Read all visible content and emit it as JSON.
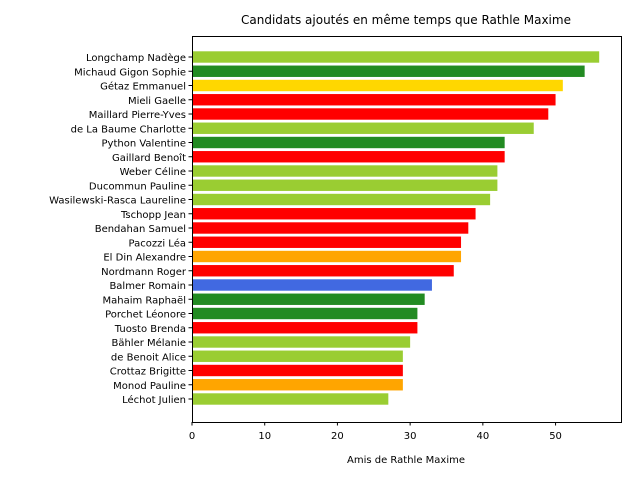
{
  "chart_data": {
    "type": "bar",
    "orientation": "horizontal",
    "title": "Candidats ajoutés en même temps que Rathle Maxime",
    "xlabel": "Amis de Rathle Maxime",
    "ylabel": "",
    "xlim": [
      0,
      59
    ],
    "xticks": [
      0,
      10,
      20,
      30,
      40,
      50
    ],
    "grid": false,
    "categories": [
      "Longchamp Nadège",
      "Michaud Gigon Sophie",
      "Gétaz Emmanuel",
      "Mieli Gaelle",
      "Maillard Pierre-Yves",
      "de La Baume Charlotte",
      "Python Valentine",
      "Gaillard Benoît",
      "Weber Céline",
      "Ducommun Pauline",
      "Wasilewski-Rasca Laureline",
      "Tschopp Jean",
      "Bendahan Samuel",
      "Pacozzi Léa",
      "El Din Alexandre",
      "Nordmann Roger",
      "Balmer Romain",
      "Mahaim Raphaël",
      "Porchet Léonore",
      "Tuosto Brenda",
      "Bähler Mélanie",
      "de Benoit Alice",
      "Crottaz Brigitte",
      "Monod Pauline",
      "Léchot Julien"
    ],
    "values": [
      56,
      54,
      51,
      50,
      49,
      47,
      43,
      43,
      42,
      42,
      41,
      39,
      38,
      37,
      37,
      36,
      33,
      32,
      31,
      31,
      30,
      29,
      29,
      29,
      27
    ],
    "colors": [
      "#9acd32",
      "#228b22",
      "#ffd700",
      "#ff0000",
      "#ff0000",
      "#9acd32",
      "#228b22",
      "#ff0000",
      "#9acd32",
      "#9acd32",
      "#9acd32",
      "#ff0000",
      "#ff0000",
      "#ff0000",
      "#ffa500",
      "#ff0000",
      "#4169e1",
      "#228b22",
      "#228b22",
      "#ff0000",
      "#9acd32",
      "#9acd32",
      "#ff0000",
      "#ffa500",
      "#9acd32"
    ]
  }
}
